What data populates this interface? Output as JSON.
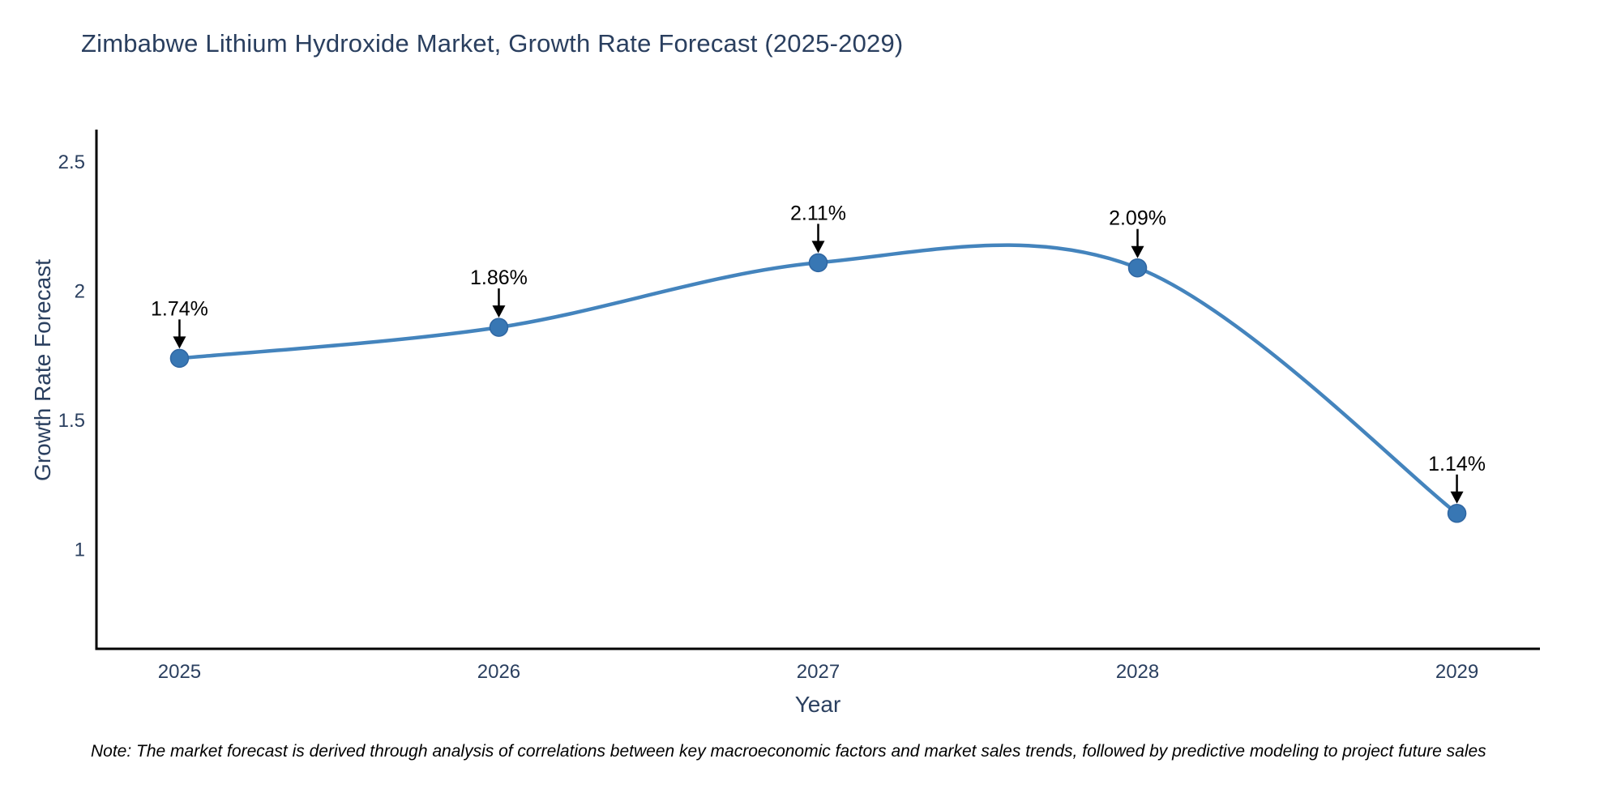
{
  "chart_data": {
    "type": "line",
    "title": "Zimbabwe Lithium Hydroxide Market, Growth Rate Forecast (2025-2029)",
    "xlabel": "Year",
    "ylabel": "Growth Rate Forecast",
    "x": [
      2025,
      2026,
      2027,
      2028,
      2029
    ],
    "values": [
      1.74,
      1.86,
      2.11,
      2.09,
      1.14
    ],
    "point_labels": [
      "1.74%",
      "1.86%",
      "2.11%",
      "2.09%",
      "1.14%"
    ],
    "xtick_labels": [
      "2025",
      "2026",
      "2027",
      "2028",
      "2029"
    ],
    "yticks": [
      1,
      1.5,
      2,
      2.5
    ],
    "ytick_labels": [
      "1",
      "1.5",
      "2",
      "2.5"
    ],
    "xlim": [
      2024.74,
      2029.26
    ],
    "ylim": [
      0.616,
      2.625
    ],
    "line_shape": "spline",
    "grid": false,
    "legend": false,
    "colors": {
      "line": "#4484bd",
      "marker": "#3877b4",
      "marker_edge": "#2f66a2",
      "axis": "#000000",
      "text": "#2a3f5f",
      "annotation_text": "#000000",
      "arrow": "#000000"
    },
    "note": "Note: The market forecast is derived through analysis of correlations between key macroeconomic factors and market sales trends, followed by predictive modeling to project future sales"
  }
}
